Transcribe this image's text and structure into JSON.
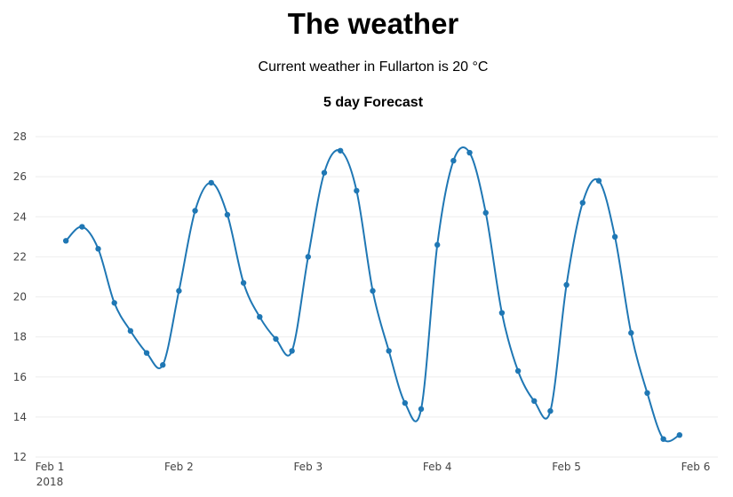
{
  "page": {
    "title": "The weather",
    "current_weather": "Current weather in Fullarton is 20 °C"
  },
  "colors": {
    "series": "#1f77b4",
    "grid": "#eeeeee",
    "text": "#444444"
  },
  "chart_data": {
    "type": "line",
    "title": "5 day Forecast",
    "xlabel": "",
    "ylabel": "",
    "grid": true,
    "legend": "none",
    "line_shape": "spline",
    "ylim": [
      12,
      28
    ],
    "y_ticks": [
      12,
      14,
      16,
      18,
      20,
      22,
      24,
      26,
      28
    ],
    "xlim": [
      "2018-02-01 00:00",
      "2018-02-06 00:00"
    ],
    "x_ticks": [
      {
        "value": "2018-02-01 00:00",
        "label": "Feb 1",
        "sublabel": "2018"
      },
      {
        "value": "2018-02-02 00:00",
        "label": "Feb 2"
      },
      {
        "value": "2018-02-03 00:00",
        "label": "Feb 3"
      },
      {
        "value": "2018-02-04 00:00",
        "label": "Feb 4"
      },
      {
        "value": "2018-02-05 00:00",
        "label": "Feb 5"
      },
      {
        "value": "2018-02-06 00:00",
        "label": "Feb 6"
      }
    ],
    "series": [
      {
        "x": [
          "2018-02-01 03:00",
          "2018-02-01 06:00",
          "2018-02-01 09:00",
          "2018-02-01 12:00",
          "2018-02-01 15:00",
          "2018-02-01 18:00",
          "2018-02-01 21:00",
          "2018-02-02 00:00",
          "2018-02-02 03:00",
          "2018-02-02 06:00",
          "2018-02-02 09:00",
          "2018-02-02 12:00",
          "2018-02-02 15:00",
          "2018-02-02 18:00",
          "2018-02-02 21:00",
          "2018-02-03 00:00",
          "2018-02-03 03:00",
          "2018-02-03 06:00",
          "2018-02-03 09:00",
          "2018-02-03 12:00",
          "2018-02-03 15:00",
          "2018-02-03 18:00",
          "2018-02-03 21:00",
          "2018-02-04 00:00",
          "2018-02-04 03:00",
          "2018-02-04 06:00",
          "2018-02-04 09:00",
          "2018-02-04 12:00",
          "2018-02-04 15:00",
          "2018-02-04 18:00",
          "2018-02-04 21:00",
          "2018-02-05 00:00",
          "2018-02-05 03:00",
          "2018-02-05 06:00",
          "2018-02-05 09:00",
          "2018-02-05 12:00",
          "2018-02-05 15:00",
          "2018-02-05 18:00",
          "2018-02-05 21:00"
        ],
        "y": [
          22.8,
          23.5,
          22.4,
          19.7,
          18.3,
          17.2,
          16.6,
          20.3,
          24.3,
          25.7,
          24.1,
          20.7,
          19.0,
          17.9,
          17.3,
          22.0,
          26.2,
          27.3,
          25.3,
          20.3,
          17.3,
          14.7,
          14.4,
          22.6,
          26.8,
          27.2,
          24.2,
          19.2,
          16.3,
          14.8,
          14.3,
          20.6,
          24.7,
          25.8,
          23.0,
          18.2,
          15.2,
          12.9,
          13.1
        ]
      }
    ]
  }
}
